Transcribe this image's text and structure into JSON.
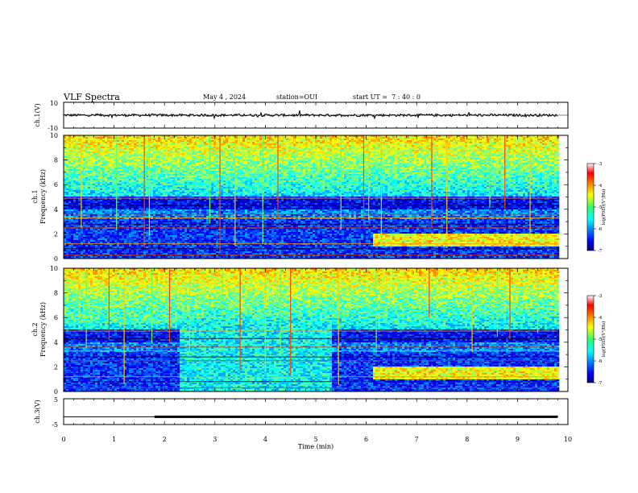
{
  "header": {
    "title": "VLF Spectra",
    "date": "May 4 , 2024",
    "station": "station=OUI",
    "start_ut": "start UT =  7 : 40 : 0"
  },
  "chart_data": [
    {
      "type": "line",
      "id": "ch1_waveform",
      "ylabel": "ch.1(V)",
      "xlim": [
        0,
        10
      ],
      "ylim": [
        -10,
        10
      ],
      "ytick_labels": [
        "10",
        "-10"
      ],
      "data_x_end": 9.8,
      "baseline": 0,
      "noise_amplitude": 1.0
    },
    {
      "type": "heatmap",
      "id": "ch1_spectrogram",
      "ylabel_top": "ch.1",
      "ylabel": "Frequency (kHz)",
      "xlim": [
        0,
        10
      ],
      "ylim": [
        0,
        10
      ],
      "yticks": [
        0,
        2,
        4,
        6,
        8,
        10
      ],
      "data_x_end": 9.8,
      "colorbar": {
        "label": "log(PSD)(V²/Hz)",
        "range": [
          -7,
          -3
        ],
        "ticks": [
          "-3",
          "-4",
          "-5",
          "-6",
          "-7"
        ]
      },
      "regions": [
        {
          "x": [
            6.1,
            9.8
          ],
          "y": [
            1.0,
            2.0
          ],
          "level": -4.5,
          "note": "enhanced 1-2 kHz band"
        }
      ],
      "spike_times_min": [
        0.35,
        1.05,
        1.6,
        1.7,
        2.9,
        3.1,
        3.4,
        3.95,
        4.25,
        4.35,
        5.5,
        5.95,
        6.05,
        6.3,
        7.3,
        7.6,
        8.45,
        8.75,
        9.25
      ]
    },
    {
      "type": "heatmap",
      "id": "ch2_spectrogram",
      "ylabel_top": "ch.2",
      "ylabel": "Frequency (kHz)",
      "xlim": [
        0,
        10
      ],
      "ylim": [
        0,
        10
      ],
      "yticks": [
        0,
        2,
        4,
        6,
        8,
        10
      ],
      "data_x_end": 9.8,
      "colorbar": {
        "label": "log(PSD)(V²/Hz)",
        "range": [
          -7,
          -3
        ],
        "ticks": [
          "-3",
          "-4",
          "-5",
          "-6",
          "-7"
        ]
      },
      "regions": [
        {
          "x": [
            0.0,
            2.3
          ],
          "y": [
            5.5,
            6.5
          ],
          "level": -5.2,
          "note": "broadband 5.5-6.5 kHz"
        },
        {
          "x": [
            2.3,
            5.3
          ],
          "y": [
            0.0,
            10.0
          ],
          "level": -5.5,
          "note": "elevated broadband"
        },
        {
          "x": [
            6.1,
            9.8
          ],
          "y": [
            1.0,
            2.0
          ],
          "level": -4.5,
          "note": "enhanced 1-2 kHz band"
        }
      ],
      "spike_times_min": [
        0.3,
        0.45,
        0.9,
        1.2,
        1.75,
        2.1,
        2.5,
        3.15,
        3.5,
        4.0,
        4.3,
        4.5,
        5.45,
        6.2,
        7.25,
        8.1,
        8.6,
        8.85,
        9.4
      ]
    },
    {
      "type": "line",
      "id": "ch3_level",
      "ylabel": "ch.3(V)",
      "xlim": [
        0,
        10
      ],
      "ylim": [
        -5,
        5
      ],
      "ytick_labels": [
        "5",
        "-5"
      ],
      "thin_segment": {
        "x": [
          0.0,
          1.8
        ],
        "y": -2.0
      },
      "thick_segment": {
        "x": [
          1.8,
          9.8
        ],
        "y": -2.0
      }
    }
  ],
  "x_axis": {
    "label": "Time (min)",
    "ticks": [
      "0",
      "1",
      "2",
      "3",
      "4",
      "5",
      "6",
      "7",
      "8",
      "9",
      "10"
    ]
  }
}
